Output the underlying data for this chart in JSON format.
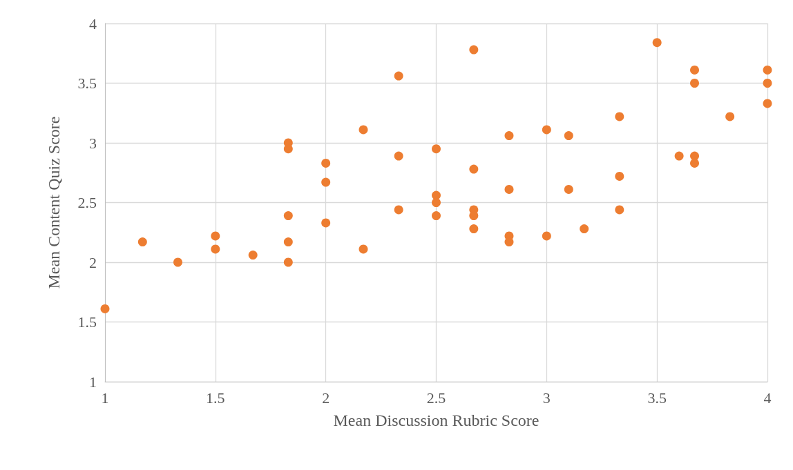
{
  "chart_data": {
    "type": "scatter",
    "xlabel": "Mean Discussion Rubric Score",
    "ylabel": "Mean Content Quiz Score",
    "xlim": [
      1,
      4
    ],
    "xticks": [
      1,
      1.5,
      2,
      2.5,
      3,
      3.5,
      4
    ],
    "ylim": [
      1,
      4
    ],
    "yticks": [
      1,
      1.5,
      2,
      2.5,
      3,
      3.5,
      4
    ],
    "grid": true,
    "marker": "circle",
    "series": [
      {
        "color": "#ed7d31",
        "x": [
          1,
          1.17,
          1.33,
          1.5,
          1.5,
          1.67,
          1.83,
          1.83,
          1.83,
          1.83,
          1.83,
          2,
          2,
          2,
          2.17,
          2.17,
          2.33,
          2.33,
          2.33,
          2.5,
          2.5,
          2.5,
          2.5,
          2.67,
          2.67,
          2.67,
          2.67,
          2.67,
          2.83,
          2.83,
          2.83,
          2.83,
          3,
          3,
          3.1,
          3.1,
          3.17,
          3.33,
          3.33,
          3.33,
          3.5,
          3.6,
          3.67,
          3.67,
          3.67,
          3.67,
          3.83,
          4,
          4,
          4
        ],
        "values": [
          1.61,
          2.17,
          2,
          2.22,
          2.11,
          2.06,
          3,
          2.95,
          2.39,
          2.17,
          2,
          2.83,
          2.67,
          2.33,
          3.11,
          2.11,
          3.56,
          2.89,
          2.44,
          2.95,
          2.56,
          2.5,
          2.39,
          3.78,
          2.78,
          2.44,
          2.39,
          2.28,
          3.06,
          2.61,
          2.22,
          2.17,
          3.11,
          2.22,
          3.06,
          2.61,
          2.28,
          3.22,
          2.72,
          2.44,
          3.84,
          2.89,
          3.61,
          3.5,
          2.89,
          2.83,
          3.22,
          3.61,
          3.5,
          3.33
        ]
      }
    ]
  }
}
